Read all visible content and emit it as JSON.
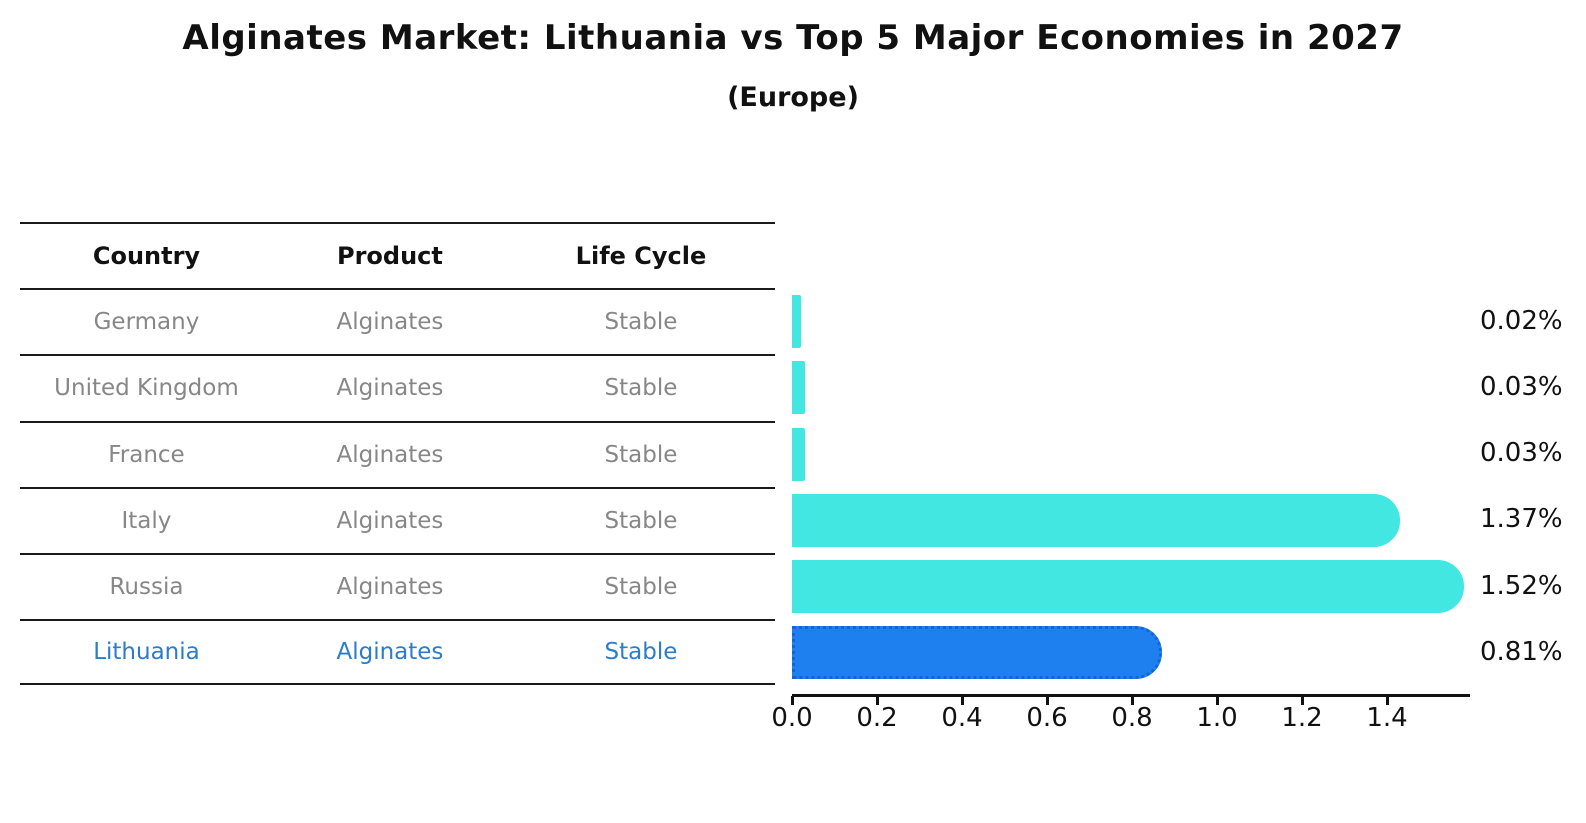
{
  "title": "Alginates Market: Lithuania vs Top 5 Major Economies in 2027",
  "subtitle": "(Europe)",
  "table": {
    "headers": [
      "Country",
      "Product",
      "Life Cycle"
    ],
    "rows": [
      {
        "country": "Germany",
        "product": "Alginates",
        "life_cycle": "Stable",
        "highlight": false
      },
      {
        "country": "United Kingdom",
        "product": "Alginates",
        "life_cycle": "Stable",
        "highlight": false
      },
      {
        "country": "France",
        "product": "Alginates",
        "life_cycle": "Stable",
        "highlight": false
      },
      {
        "country": "Italy",
        "product": "Alginates",
        "life_cycle": "Stable",
        "highlight": false
      },
      {
        "country": "Russia",
        "product": "Alginates",
        "life_cycle": "Stable",
        "highlight": false
      },
      {
        "country": "Lithuania",
        "product": "Alginates",
        "life_cycle": "Stable",
        "highlight": true
      }
    ]
  },
  "chart_data": {
    "type": "bar",
    "orientation": "horizontal",
    "categories": [
      "Germany",
      "United Kingdom",
      "France",
      "Italy",
      "Russia",
      "Lithuania"
    ],
    "values": [
      0.02,
      0.03,
      0.03,
      1.37,
      1.52,
      0.81
    ],
    "value_labels": [
      "0.02%",
      "0.03%",
      "0.03%",
      "1.37%",
      "1.52%",
      "0.81%"
    ],
    "unit": "%",
    "title": "Alginates Market: Lithuania vs Top 5 Major Economies in 2027",
    "subtitle": "(Europe)",
    "xlabel": "",
    "ylabel": "",
    "xticks": [
      "0.0",
      "0.2",
      "0.4",
      "0.6",
      "0.8",
      "1.0",
      "1.2",
      "1.4"
    ],
    "xtick_values": [
      0.0,
      0.2,
      0.4,
      0.6,
      0.8,
      1.0,
      1.2,
      1.4
    ],
    "xlim": [
      0,
      1.6
    ],
    "grid": false,
    "legend": false,
    "highlight_index": 5,
    "bar_color": "#42e7e1",
    "highlight_bar_color": "#1e80ef",
    "highlight_border_color": "#1463d8",
    "highlight_text_color": "#2b7ccc"
  }
}
